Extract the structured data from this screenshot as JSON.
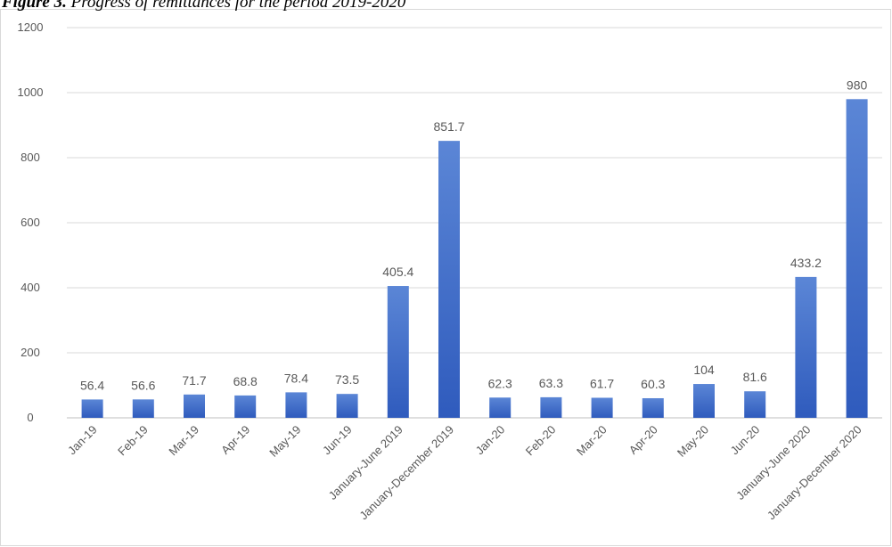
{
  "caption": {
    "label": "Figure 3.",
    "text": "Progress of remittances for the period 2019-2020"
  },
  "chart_data": {
    "type": "bar",
    "title": "",
    "xlabel": "",
    "ylabel": "",
    "ylim": [
      0,
      1200
    ],
    "yticks": [
      0,
      200,
      400,
      600,
      800,
      1000,
      1200
    ],
    "grid": true,
    "legend": "none",
    "bar_color": "#4472c4",
    "categories": [
      "Jan-19",
      "Feb-19",
      "Mar-19",
      "Apr-19",
      "May-19",
      "Jun-19",
      "January-June 2019",
      "January-December 2019",
      "Jan-20",
      "Feb-20",
      "Mar-20",
      "Apr-20",
      "May-20",
      "Jun-20",
      "January-June 2020",
      "January-December 2020"
    ],
    "values": [
      56.4,
      56.6,
      71.7,
      68.8,
      78.4,
      73.5,
      405.4,
      851.7,
      62.3,
      63.3,
      61.7,
      60.3,
      104,
      81.6,
      433.2,
      980
    ],
    "value_labels": [
      "56.4",
      "56.6",
      "71.7",
      "68.8",
      "78.4",
      "73.5",
      "405.4",
      "851.7",
      "62.3",
      "63.3",
      "61.7",
      "60.3",
      "104",
      "81.6",
      "433.2",
      "980"
    ]
  }
}
